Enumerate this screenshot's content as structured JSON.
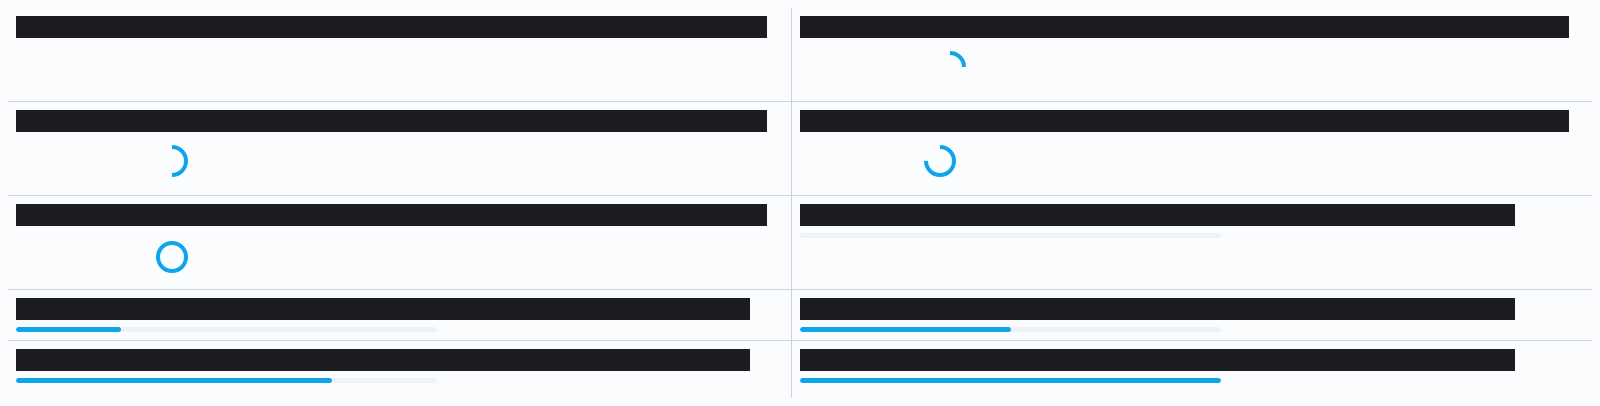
{
  "colors": {
    "accent": "#0ea5e9",
    "bar": "#1c1d20",
    "track": "#eef1f6",
    "divider": "#cfd3d8",
    "background": "#fbfcfe"
  },
  "cells": [
    {
      "id": "r1c1",
      "indicator": "none"
    },
    {
      "id": "r1c2",
      "indicator": "spinner",
      "progress": 0.25
    },
    {
      "id": "r2c1",
      "indicator": "spinner",
      "progress": 0.5
    },
    {
      "id": "r2c2",
      "indicator": "spinner",
      "progress": 0.75
    },
    {
      "id": "r3c1",
      "indicator": "spinner",
      "progress": 1.0
    },
    {
      "id": "r3c2",
      "indicator": "bar",
      "progress": 0.0
    },
    {
      "id": "r4c1",
      "indicator": "bar",
      "progress": 0.25
    },
    {
      "id": "r4c2",
      "indicator": "bar",
      "progress": 0.5
    },
    {
      "id": "r5c1",
      "indicator": "bar",
      "progress": 0.75
    },
    {
      "id": "r5c2",
      "indicator": "bar",
      "progress": 1.0
    }
  ]
}
